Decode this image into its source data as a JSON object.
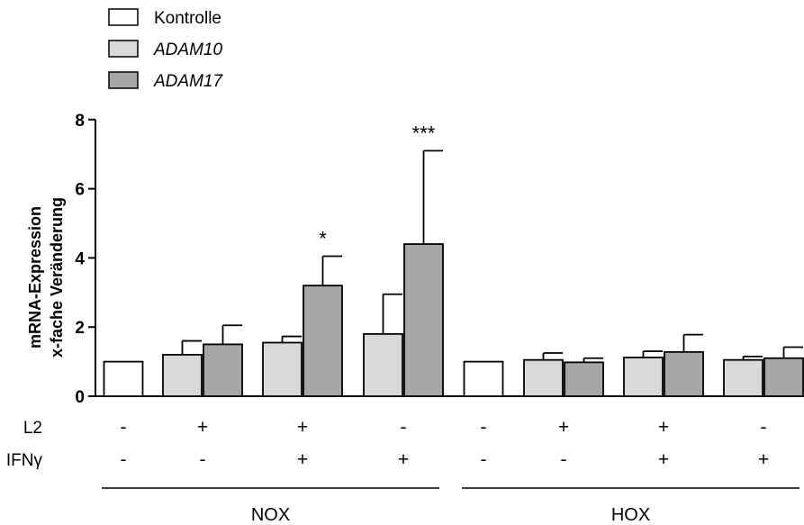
{
  "chart_data": {
    "type": "bar",
    "ylabel_lines": [
      "mRNA-Expression",
      "x-fache Veränderung"
    ],
    "ylim": [
      0,
      8
    ],
    "yticks": [
      0,
      2,
      4,
      6,
      8
    ],
    "grid": false,
    "legend_position": "top-left",
    "series": [
      {
        "name": "Kontrolle",
        "italic": false,
        "color": "#ffffff"
      },
      {
        "name": "ADAM10",
        "italic": true,
        "color": "#d9d9d9"
      },
      {
        "name": "ADAM17",
        "italic": true,
        "color": "#a6a6a6"
      }
    ],
    "groups": [
      {
        "l2": "-",
        "ifn": "-",
        "bars": [
          {
            "series": 0,
            "value": 1.0
          }
        ]
      },
      {
        "l2": "+",
        "ifn": "-",
        "bars": [
          {
            "series": 1,
            "value": 1.2,
            "error": 0.4
          },
          {
            "series": 2,
            "value": 1.5,
            "error": 0.55
          }
        ]
      },
      {
        "l2": "+",
        "ifn": "+",
        "bars": [
          {
            "series": 1,
            "value": 1.55,
            "error": 0.18
          },
          {
            "series": 2,
            "value": 3.2,
            "error": 0.85,
            "sig": "*"
          }
        ]
      },
      {
        "l2": "-",
        "ifn": "+",
        "bars": [
          {
            "series": 1,
            "value": 1.8,
            "error": 1.15
          },
          {
            "series": 2,
            "value": 4.4,
            "error": 2.7,
            "sig": "***"
          }
        ]
      },
      {
        "l2": "-",
        "ifn": "-",
        "bars": [
          {
            "series": 0,
            "value": 1.0
          }
        ]
      },
      {
        "l2": "+",
        "ifn": "-",
        "bars": [
          {
            "series": 1,
            "value": 1.05,
            "error": 0.2
          },
          {
            "series": 2,
            "value": 0.98,
            "error": 0.12
          }
        ]
      },
      {
        "l2": "+",
        "ifn": "+",
        "bars": [
          {
            "series": 1,
            "value": 1.12,
            "error": 0.18
          },
          {
            "series": 2,
            "value": 1.28,
            "error": 0.5
          }
        ]
      },
      {
        "l2": "-",
        "ifn": "+",
        "bars": [
          {
            "series": 1,
            "value": 1.05,
            "error": 0.1
          },
          {
            "series": 2,
            "value": 1.1,
            "error": 0.32
          }
        ]
      }
    ],
    "row_labels": {
      "l2": "L2",
      "ifn": "IFNγ"
    },
    "conditions": [
      {
        "label": "NOX",
        "groups": [
          0,
          3
        ]
      },
      {
        "label": "HOX",
        "groups": [
          4,
          7
        ]
      }
    ]
  }
}
